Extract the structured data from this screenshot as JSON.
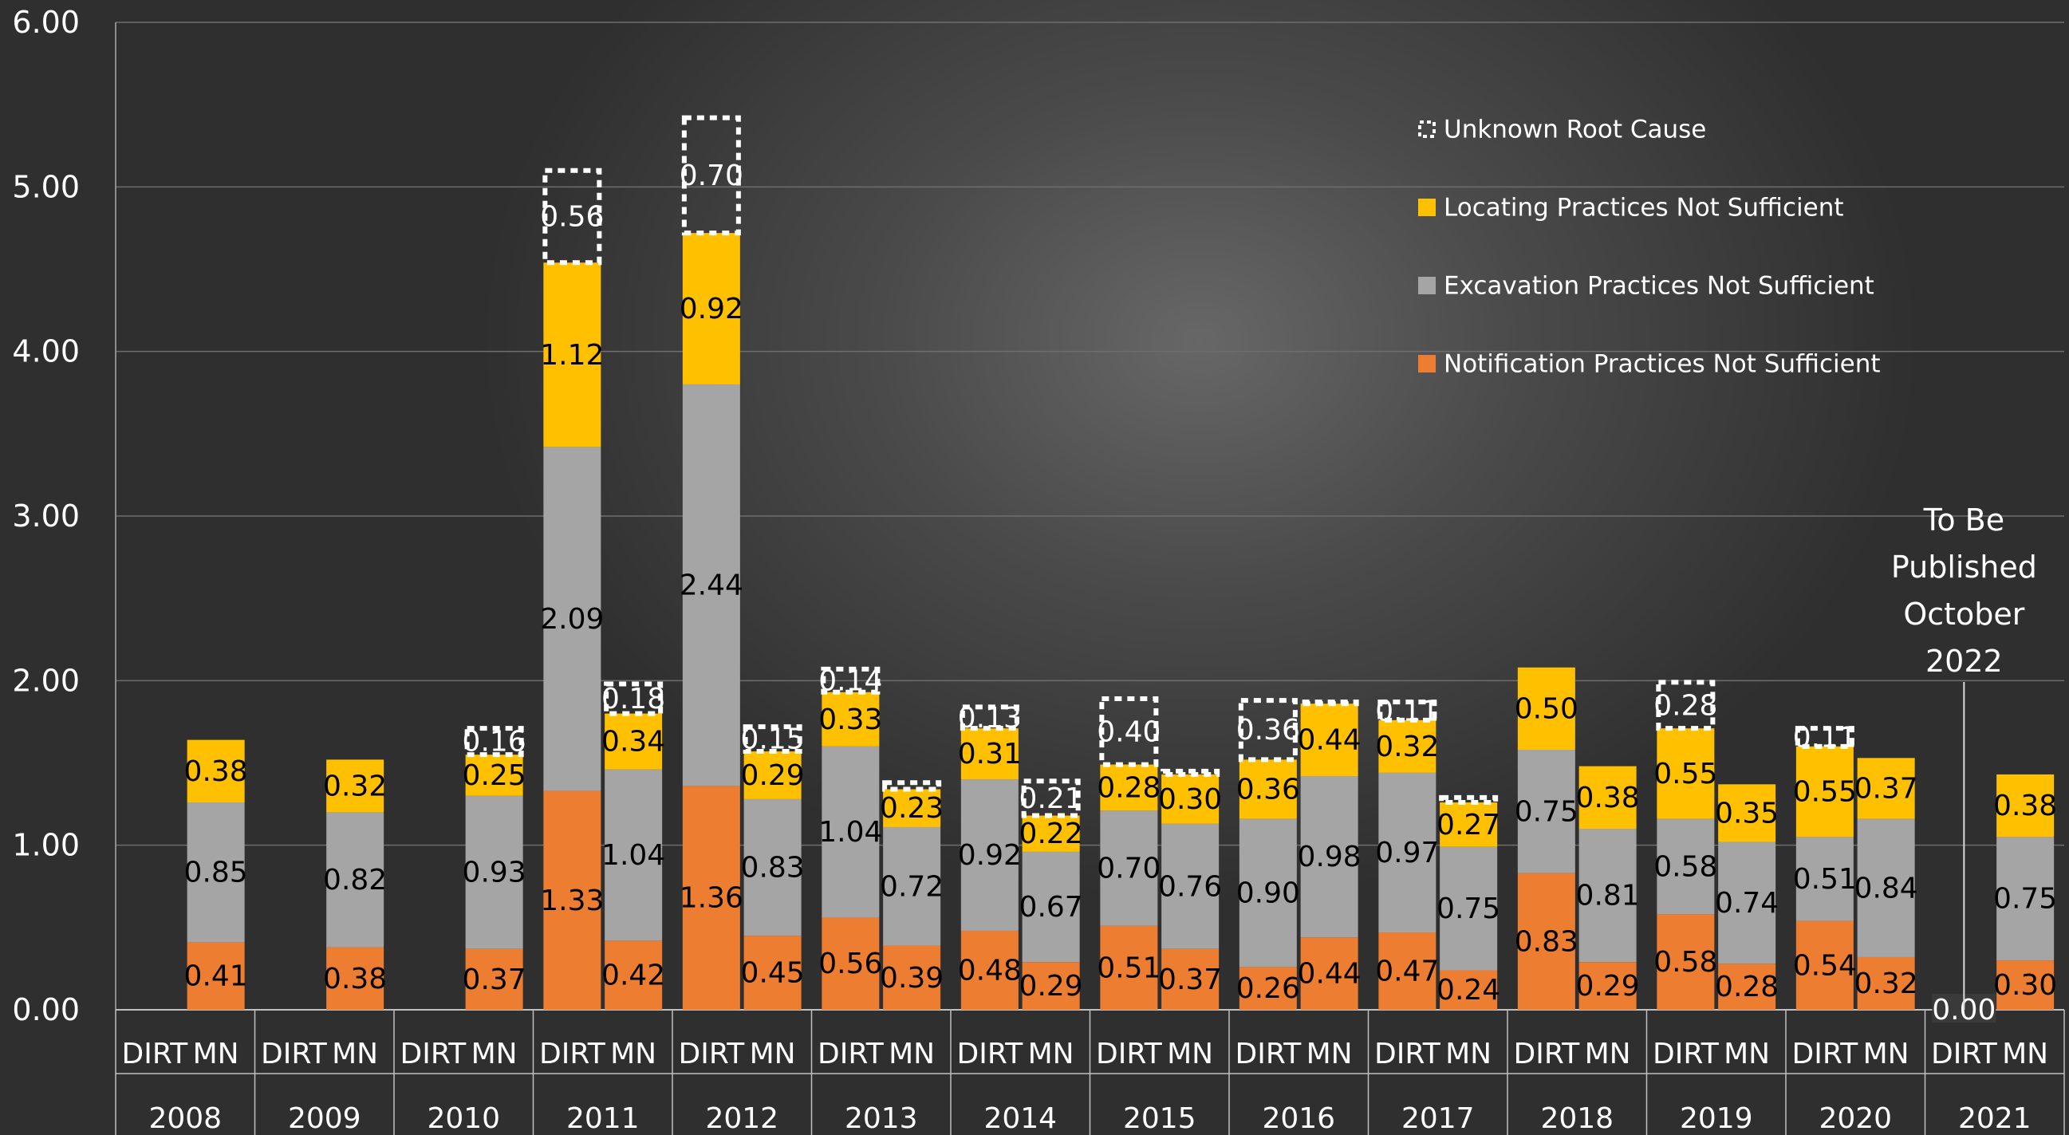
{
  "chart_data": {
    "type": "bar",
    "stacked": true,
    "ylim": [
      0,
      6
    ],
    "yticks": [
      "0.00",
      "1.00",
      "2.00",
      "3.00",
      "4.00",
      "5.00",
      "6.00"
    ],
    "grid": true,
    "legend_position": "top-right",
    "years": [
      "2008",
      "2009",
      "2010",
      "2011",
      "2012",
      "2013",
      "2014",
      "2015",
      "2016",
      "2017",
      "2018",
      "2019",
      "2020",
      "2021"
    ],
    "sub_labels": [
      "DIRT",
      "MN"
    ],
    "colors": {
      "notification": "#ed7d31",
      "excavation": "#a5a5a5",
      "locating": "#ffc000",
      "unknown": "#ffffff"
    },
    "series": [
      {
        "key": "notification",
        "name": "Notification Practices Not Sufficient"
      },
      {
        "key": "excavation",
        "name": "Excavation Practices Not Sufficient"
      },
      {
        "key": "locating",
        "name": "Locating Practices Not Sufficient"
      },
      {
        "key": "unknown",
        "name": "Unknown Root Cause",
        "style": "dashed-outline"
      }
    ],
    "legend_order": [
      "Unknown Root Cause",
      "Locating Practices Not Sufficient",
      "Excavation Practices Not Sufficient",
      "Notification Practices Not Sufficient"
    ],
    "bars": [
      {
        "year": "2008",
        "source": "MN",
        "notification": 0.41,
        "excavation": 0.85,
        "locating": 0.38,
        "unknown": null
      },
      {
        "year": "2009",
        "source": "MN",
        "notification": 0.38,
        "excavation": 0.82,
        "locating": 0.32,
        "unknown": null
      },
      {
        "year": "2010",
        "source": "MN",
        "notification": 0.37,
        "excavation": 0.93,
        "locating": 0.25,
        "unknown": 0.16
      },
      {
        "year": "2011",
        "source": "DIRT",
        "notification": 1.33,
        "excavation": 2.09,
        "locating": 1.12,
        "unknown": 0.56
      },
      {
        "year": "2011",
        "source": "MN",
        "notification": 0.42,
        "excavation": 1.04,
        "locating": 0.34,
        "unknown": 0.18
      },
      {
        "year": "2012",
        "source": "DIRT",
        "notification": 1.36,
        "excavation": 2.44,
        "locating": 0.92,
        "unknown": 0.7
      },
      {
        "year": "2012",
        "source": "MN",
        "notification": 0.45,
        "excavation": 0.83,
        "locating": 0.29,
        "unknown": 0.15
      },
      {
        "year": "2013",
        "source": "DIRT",
        "notification": 0.56,
        "excavation": 1.04,
        "locating": 0.33,
        "unknown": 0.14
      },
      {
        "year": "2013",
        "source": "MN",
        "notification": 0.39,
        "excavation": 0.72,
        "locating": 0.23,
        "unknown": 0.04
      },
      {
        "year": "2014",
        "source": "DIRT",
        "notification": 0.48,
        "excavation": 0.92,
        "locating": 0.31,
        "unknown": 0.13
      },
      {
        "year": "2014",
        "source": "MN",
        "notification": 0.29,
        "excavation": 0.67,
        "locating": 0.22,
        "unknown": 0.21
      },
      {
        "year": "2015",
        "source": "DIRT",
        "notification": 0.51,
        "excavation": 0.7,
        "locating": 0.28,
        "unknown": 0.4
      },
      {
        "year": "2015",
        "source": "MN",
        "notification": 0.37,
        "excavation": 0.76,
        "locating": 0.3,
        "unknown": 0.02
      },
      {
        "year": "2016",
        "source": "DIRT",
        "notification": 0.26,
        "excavation": 0.9,
        "locating": 0.36,
        "unknown": 0.36
      },
      {
        "year": "2016",
        "source": "MN",
        "notification": 0.44,
        "excavation": 0.98,
        "locating": 0.44,
        "unknown": 0.01
      },
      {
        "year": "2017",
        "source": "DIRT",
        "notification": 0.47,
        "excavation": 0.97,
        "locating": 0.32,
        "unknown": 0.11
      },
      {
        "year": "2017",
        "source": "MN",
        "notification": 0.24,
        "excavation": 0.75,
        "locating": 0.27,
        "unknown": 0.03
      },
      {
        "year": "2018",
        "source": "DIRT",
        "notification": 0.83,
        "excavation": 0.75,
        "locating": 0.5,
        "unknown": null
      },
      {
        "year": "2018",
        "source": "MN",
        "notification": 0.29,
        "excavation": 0.81,
        "locating": 0.38,
        "unknown": null
      },
      {
        "year": "2019",
        "source": "DIRT",
        "notification": 0.58,
        "excavation": 0.58,
        "locating": 0.55,
        "unknown": 0.28
      },
      {
        "year": "2019",
        "source": "MN",
        "notification": 0.28,
        "excavation": 0.74,
        "locating": 0.35,
        "unknown": null
      },
      {
        "year": "2020",
        "source": "DIRT",
        "notification": 0.54,
        "excavation": 0.51,
        "locating": 0.55,
        "unknown": 0.11
      },
      {
        "year": "2020",
        "source": "MN",
        "notification": 0.32,
        "excavation": 0.84,
        "locating": 0.37,
        "unknown": 0.0
      },
      {
        "year": "2021",
        "source": "MN",
        "notification": 0.3,
        "excavation": 0.75,
        "locating": 0.38,
        "unknown": 0.0
      }
    ],
    "zero_label": {
      "year": "2021",
      "source": "DIRT",
      "text": "0.00"
    },
    "annotation": {
      "year": "2021",
      "source": "DIRT",
      "lines": [
        "To Be",
        "Published",
        "October",
        "2022"
      ]
    }
  }
}
